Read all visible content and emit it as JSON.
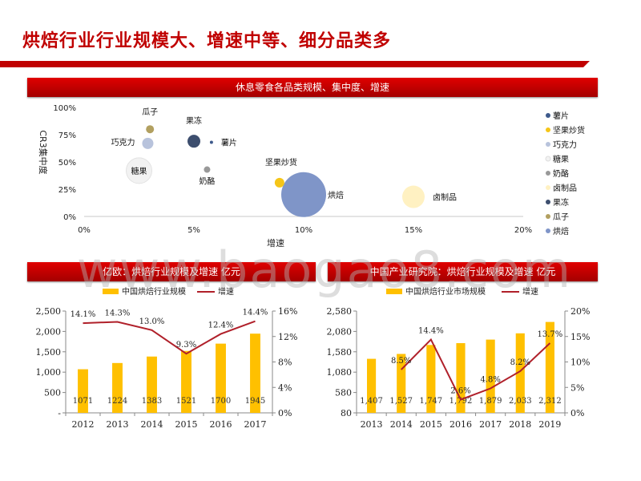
{
  "page": {
    "title": "烘焙行业行业规模大、增速中等、细分品类多",
    "watermark": "www.baogao8.com",
    "accent": "#c00000"
  },
  "chart_data": [
    {
      "type": "scatter",
      "title": "休息零食各品类规模、集中度、增速",
      "xlabel": "增速",
      "ylabel": "CR3集中度",
      "xlim": [
        0,
        0.2
      ],
      "ylim": [
        0,
        1
      ],
      "x_ticks": [
        "0%",
        "5%",
        "10%",
        "15%",
        "20%"
      ],
      "y_ticks": [
        "0%",
        "25%",
        "50%",
        "75%",
        "100%"
      ],
      "legend_position": "right",
      "points": [
        {
          "name": "薯片",
          "x": 0.058,
          "y": 0.68,
          "size": 2,
          "color": "#3e5a8c"
        },
        {
          "name": "坚果炒货",
          "x": 0.089,
          "y": 0.31,
          "size": 6,
          "color": "#f5c518"
        },
        {
          "name": "巧克力",
          "x": 0.029,
          "y": 0.67,
          "size": 7,
          "color": "#b8c3dc"
        },
        {
          "name": "糖果",
          "x": 0.025,
          "y": 0.42,
          "size": 16,
          "color": "#f2f2f2"
        },
        {
          "name": "奶酪",
          "x": 0.056,
          "y": 0.43,
          "size": 4,
          "color": "#999999"
        },
        {
          "name": "卤制品",
          "x": 0.15,
          "y": 0.18,
          "size": 14,
          "color": "#fff1c2"
        },
        {
          "name": "果冻",
          "x": 0.05,
          "y": 0.69,
          "size": 8,
          "color": "#3d4e6e"
        },
        {
          "name": "瓜子",
          "x": 0.03,
          "y": 0.8,
          "size": 5,
          "color": "#b2a060"
        },
        {
          "name": "烘焙",
          "x": 0.1,
          "y": 0.2,
          "size": 28,
          "color": "#7f95c8"
        }
      ]
    },
    {
      "type": "bar",
      "title": "亿欧：烘焙行业规模及增速 亿元",
      "categories": [
        "2012",
        "2013",
        "2014",
        "2015",
        "2016",
        "2017"
      ],
      "series": [
        {
          "name": "中国烘焙行业规模",
          "type": "bar",
          "axis": "left",
          "color": "#ffc000",
          "values": [
            1071,
            1224,
            1383,
            1521,
            1700,
            1945
          ],
          "labels": [
            "1071",
            "1224",
            "1383",
            "1521",
            "1700",
            "1945"
          ]
        },
        {
          "name": "增速",
          "type": "line",
          "axis": "right",
          "color": "#b0202a",
          "values": [
            0.141,
            0.143,
            0.13,
            0.093,
            0.124,
            0.144
          ],
          "labels": [
            "14.1%",
            "14.3%",
            "13.0%",
            "9.3%",
            "12.4%",
            "14.4%"
          ]
        }
      ],
      "ylim": [
        0,
        2500
      ],
      "y_ticks": [
        "-",
        "500",
        "1,000",
        "1,500",
        "2,000",
        "2,500"
      ],
      "y2lim": [
        0,
        0.16
      ],
      "y2_ticks": [
        "0%",
        "4%",
        "8%",
        "12%",
        "16%"
      ],
      "legend_position": "top"
    },
    {
      "type": "bar",
      "title": "中国产业研究院：烘焙行业规模及增速 亿元",
      "categories": [
        "2013",
        "2014",
        "2015",
        "2016",
        "2017",
        "2018",
        "2019"
      ],
      "series": [
        {
          "name": "中国烘焙行业市场规模",
          "type": "bar",
          "axis": "left",
          "color": "#ffc000",
          "values": [
            1407,
            1527,
            1747,
            1792,
            1879,
            2033,
            2312
          ],
          "labels": [
            "1,407",
            "1,527",
            "1,747",
            "1,792",
            "1,879",
            "2,033",
            "2,312"
          ]
        },
        {
          "name": "增速",
          "type": "line",
          "axis": "right",
          "color": "#b0202a",
          "values": [
            null,
            0.085,
            0.144,
            0.026,
            0.048,
            0.082,
            0.137
          ],
          "labels": [
            "",
            "8.5%",
            "14.4%",
            "2.6%",
            "4.8%",
            "8.2%",
            "13.7%"
          ]
        }
      ],
      "ylim": [
        80,
        2580
      ],
      "y_ticks": [
        "80",
        "580",
        "1,080",
        "1,580",
        "2,080",
        "2,580"
      ],
      "y2lim": [
        0,
        0.2
      ],
      "y2_ticks": [
        "0%",
        "5%",
        "10%",
        "15%",
        "20%"
      ],
      "legend_position": "top"
    }
  ]
}
